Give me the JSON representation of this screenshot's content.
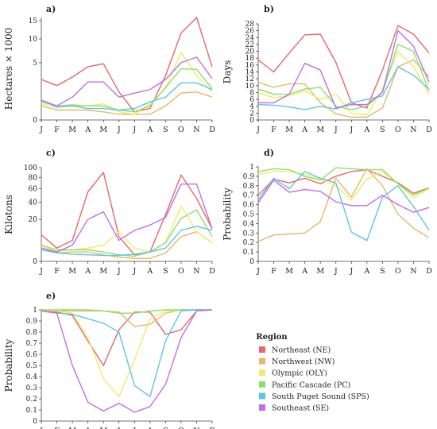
{
  "months": [
    "J",
    "F",
    "M",
    "A",
    "M",
    "J",
    "J",
    "A",
    "S",
    "O",
    "N",
    "D"
  ],
  "legend": {
    "title": "Region",
    "items": [
      {
        "label": "Northeast (NE)",
        "color": "#e8686b"
      },
      {
        "label": "Northwest (NW)",
        "color": "#e6b86a"
      },
      {
        "label": "Olympic (OLY)",
        "color": "#ecec6e"
      },
      {
        "label": "Pacific Cascade (PC)",
        "color": "#8ee06a"
      },
      {
        "label": "South Puget Sound (SPS)",
        "color": "#62c4e4"
      },
      {
        "label": "Southeast (SE)",
        "color": "#c26ee6"
      }
    ]
  },
  "chart_data": [
    {
      "panel": "a)",
      "type": "line",
      "ylabel": "Hectares × 1000",
      "scale": "sqrt",
      "ylim": [
        0,
        16
      ],
      "yticks": [
        "0",
        "5",
        "10",
        "15"
      ],
      "ytick_values": [
        0,
        5,
        10,
        15
      ],
      "grid": false,
      "series": [
        {
          "name": "Northeast (NE)",
          "color": "#e8686b",
          "values": [
            2.5,
            1.8,
            2.8,
            4.3,
            4.8,
            1.2,
            0.1,
            0.2,
            3.0,
            11.5,
            16.0,
            4.3
          ]
        },
        {
          "name": "Northwest (NW)",
          "color": "#e6b86a",
          "values": [
            0.3,
            0.15,
            0.15,
            0.15,
            0.1,
            0.05,
            0.05,
            0.05,
            0.3,
            1.1,
            1.2,
            0.8
          ]
        },
        {
          "name": "Olympic (OLY)",
          "color": "#ecec6e",
          "values": [
            0.4,
            0.25,
            0.3,
            0.3,
            0.4,
            0.1,
            0.05,
            0.4,
            1.5,
            7.0,
            3.0,
            1.2
          ]
        },
        {
          "name": "Pacific Cascade (PC)",
          "color": "#8ee06a",
          "values": [
            0.5,
            0.3,
            0.35,
            0.3,
            0.3,
            0.15,
            0.1,
            0.3,
            1.6,
            4.0,
            3.9,
            1.5
          ]
        },
        {
          "name": "South Puget Sound (SPS)",
          "color": "#62c4e4",
          "values": [
            0.6,
            0.25,
            0.3,
            0.2,
            0.2,
            0.15,
            0.2,
            0.5,
            0.8,
            2.1,
            2.1,
            1.4
          ]
        },
        {
          "name": "Southeast (SE)",
          "color": "#c26ee6",
          "values": [
            0.6,
            0.3,
            0.8,
            2.2,
            2.2,
            0.8,
            1.1,
            1.4,
            2.5,
            5.0,
            6.0,
            2.6
          ]
        }
      ]
    },
    {
      "panel": "b)",
      "type": "line",
      "ylabel": "Days",
      "scale": "linear",
      "ylim": [
        0,
        28
      ],
      "yticks": [
        "0",
        "2",
        "4",
        "6",
        "8",
        "10",
        "12",
        "14",
        "16",
        "18",
        "20",
        "22",
        "24",
        "26",
        "28"
      ],
      "ytick_values": [
        0,
        2,
        4,
        6,
        8,
        10,
        12,
        14,
        16,
        18,
        20,
        22,
        24,
        26,
        28
      ],
      "grid": false,
      "series": [
        {
          "name": "Northeast (NE)",
          "color": "#e8686b",
          "values": [
            17.5,
            14,
            19.5,
            24.8,
            25,
            16.8,
            5,
            3.5,
            14.5,
            27.5,
            25,
            19.5
          ]
        },
        {
          "name": "Northwest (NW)",
          "color": "#e6b86a",
          "values": [
            11,
            9.5,
            10.5,
            10.5,
            5,
            1.8,
            0.8,
            0.8,
            3.5,
            15.5,
            17.5,
            12.5
          ]
        },
        {
          "name": "Olympic (OLY)",
          "color": "#ecec6e",
          "values": [
            8,
            6.5,
            7,
            8.5,
            6,
            7.5,
            2,
            1.5,
            9,
            20,
            15.5,
            7.5
          ]
        },
        {
          "name": "Pacific Cascade (PC)",
          "color": "#8ee06a",
          "values": [
            9,
            7.5,
            7.5,
            9,
            9.5,
            4,
            3,
            4,
            8,
            22,
            20,
            8.5
          ]
        },
        {
          "name": "South Puget Sound (SPS)",
          "color": "#62c4e4",
          "values": [
            4.5,
            4.3,
            3.8,
            3,
            4,
            3.2,
            5,
            6,
            7,
            15.5,
            13,
            9
          ]
        },
        {
          "name": "Southeast (SE)",
          "color": "#c26ee6",
          "values": [
            5,
            5,
            7.5,
            16.5,
            14.5,
            3.5,
            4.5,
            4.5,
            8,
            26,
            21.5,
            11
          ]
        }
      ]
    },
    {
      "panel": "c)",
      "type": "line",
      "ylabel": "Kilotons",
      "scale": "sqrt",
      "ylim": [
        0,
        100
      ],
      "yticks": [
        "0",
        "20",
        "40",
        "60",
        "80",
        "100"
      ],
      "ytick_values": [
        0,
        20,
        40,
        60,
        80,
        100
      ],
      "grid": false,
      "series": [
        {
          "name": "Northeast (NE)",
          "color": "#e8686b",
          "values": [
            8,
            2,
            5,
            55,
            90,
            7,
            0.5,
            1,
            25,
            85,
            45,
            12
          ]
        },
        {
          "name": "Northwest (NW)",
          "color": "#e6b86a",
          "values": [
            2,
            0.8,
            1,
            1,
            0.5,
            0.2,
            0.1,
            0.1,
            0.8,
            7,
            10,
            4
          ]
        },
        {
          "name": "Olympic (OLY)",
          "color": "#ecec6e",
          "values": [
            2.5,
            1.2,
            1.5,
            2,
            3,
            10,
            2,
            1,
            4,
            35,
            10,
            4
          ]
        },
        {
          "name": "Pacific Cascade (PC)",
          "color": "#8ee06a",
          "values": [
            3,
            1.5,
            1.5,
            1.5,
            1,
            0.5,
            0.3,
            1,
            4,
            21,
            30,
            7
          ]
        },
        {
          "name": "South Puget Sound (SPS)",
          "color": "#62c4e4",
          "values": [
            1.5,
            0.8,
            0.6,
            0.5,
            0.4,
            0.4,
            0.6,
            1,
            2,
            11,
            14,
            11
          ]
        },
        {
          "name": "Southeast (SE)",
          "color": "#c26ee6",
          "values": [
            2,
            1,
            3,
            20,
            28,
            5,
            11,
            15,
            22,
            68,
            68,
            12
          ]
        }
      ]
    },
    {
      "panel": "d)",
      "type": "line",
      "ylabel": "Probability",
      "scale": "linear",
      "ylim": [
        0,
        1
      ],
      "yticks": [
        "0",
        "0.1",
        "0.2",
        "0.3",
        "0.4",
        "0.5",
        "0.6",
        "0.7",
        "0.8",
        "0.9",
        "1"
      ],
      "ytick_values": [
        0,
        0.1,
        0.2,
        0.3,
        0.4,
        0.5,
        0.6,
        0.7,
        0.8,
        0.9,
        1
      ],
      "grid": false,
      "series": [
        {
          "name": "Northeast (NE)",
          "color": "#e8686b",
          "values": [
            0.7,
            0.87,
            0.83,
            0.88,
            0.82,
            0.9,
            0.95,
            0.97,
            0.9,
            0.83,
            0.72,
            0.78
          ]
        },
        {
          "name": "Northwest (NW)",
          "color": "#e6b86a",
          "values": [
            0.21,
            0.28,
            0.29,
            0.3,
            0.42,
            0.88,
            0.68,
            0.98,
            0.8,
            0.5,
            0.35,
            0.25
          ]
        },
        {
          "name": "Olympic (OLY)",
          "color": "#ecec6e",
          "values": [
            0.92,
            0.95,
            0.95,
            0.92,
            0.87,
            0.8,
            0.65,
            0.87,
            0.95,
            0.82,
            0.67,
            0.77
          ]
        },
        {
          "name": "Pacific Cascade (PC)",
          "color": "#8ee06a",
          "values": [
            0.95,
            0.98,
            0.97,
            0.9,
            0.86,
            0.99,
            0.98,
            0.97,
            0.97,
            0.82,
            0.7,
            0.78
          ]
        },
        {
          "name": "South Puget Sound (SPS)",
          "color": "#62c4e4",
          "values": [
            0.65,
            0.88,
            0.77,
            0.95,
            0.88,
            0.83,
            0.31,
            0.22,
            0.68,
            0.8,
            0.58,
            0.33
          ]
        },
        {
          "name": "Southeast (SE)",
          "color": "#c26ee6",
          "values": [
            0.62,
            0.86,
            0.73,
            0.76,
            0.74,
            0.63,
            0.59,
            0.59,
            0.7,
            0.6,
            0.52,
            0.57
          ]
        }
      ]
    },
    {
      "panel": "e)",
      "type": "line",
      "ylabel": "Probability",
      "scale": "linear",
      "ylim": [
        0,
        1
      ],
      "yticks": [
        "0",
        "0.1",
        "0.2",
        "0.3",
        "0.4",
        "0.5",
        "0.6",
        "0.7",
        "0.8",
        "0.9",
        "1"
      ],
      "ytick_values": [
        0,
        0.1,
        0.2,
        0.3,
        0.4,
        0.5,
        0.6,
        0.7,
        0.8,
        0.9,
        1
      ],
      "grid": false,
      "series": [
        {
          "name": "Northeast (NE)",
          "color": "#e8686b",
          "values": [
            0.99,
            0.98,
            0.95,
            0.72,
            0.5,
            0.82,
            0.98,
            0.98,
            0.78,
            0.82,
            0.99,
            1.0
          ]
        },
        {
          "name": "Northwest (NW)",
          "color": "#e6b86a",
          "values": [
            1.0,
            0.99,
            0.99,
            0.99,
            0.99,
            0.98,
            0.85,
            0.87,
            0.97,
            1.0,
            1.0,
            1.0
          ]
        },
        {
          "name": "Olympic (OLY)",
          "color": "#ecec6e",
          "values": [
            1.0,
            0.99,
            0.97,
            0.75,
            0.38,
            0.22,
            0.55,
            0.92,
            0.99,
            1.0,
            1.0,
            1.0
          ]
        },
        {
          "name": "Pacific Cascade (PC)",
          "color": "#8ee06a",
          "values": [
            1.0,
            1.0,
            1.0,
            1.0,
            0.99,
            0.97,
            0.97,
            0.99,
            1.0,
            1.0,
            1.0,
            1.0
          ]
        },
        {
          "name": "South Puget Sound (SPS)",
          "color": "#62c4e4",
          "values": [
            0.99,
            0.97,
            0.96,
            0.92,
            0.88,
            0.8,
            0.32,
            0.22,
            0.72,
            0.99,
            1.0,
            1.0
          ]
        },
        {
          "name": "Southeast (SE)",
          "color": "#c26ee6",
          "values": [
            0.99,
            0.97,
            0.5,
            0.17,
            0.09,
            0.16,
            0.08,
            0.13,
            0.33,
            0.75,
            0.99,
            1.0
          ]
        }
      ]
    }
  ]
}
